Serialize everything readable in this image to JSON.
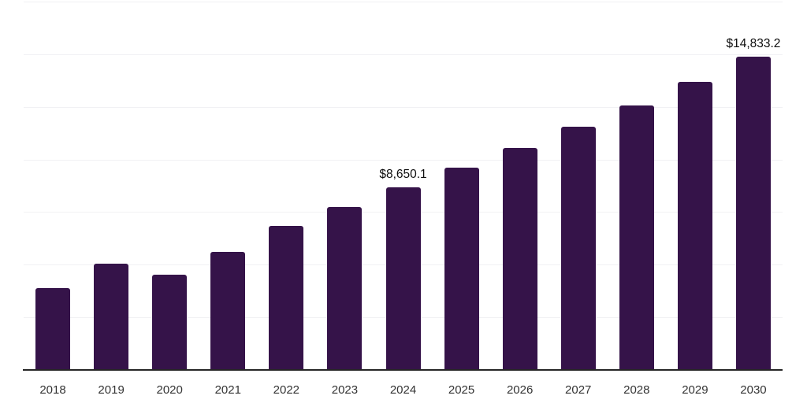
{
  "chart_data": {
    "type": "bar",
    "title": "",
    "xlabel": "",
    "ylabel": "",
    "categories": [
      "2018",
      "2019",
      "2020",
      "2021",
      "2022",
      "2023",
      "2024",
      "2025",
      "2026",
      "2027",
      "2028",
      "2029",
      "2030"
    ],
    "values": [
      3840,
      5000,
      4475,
      5590,
      6820,
      7720,
      8650.1,
      9580,
      10510,
      11520,
      12530,
      13650,
      14833.2
    ],
    "value_labels": {
      "2024": "$8,650.1",
      "2030": "$14,833.2"
    },
    "ylim": [
      0,
      17500
    ],
    "grid_step": 2500,
    "grid": true,
    "legend": false,
    "colors": {
      "bar": "#351349",
      "gridline": "#f1f1f4",
      "axis_line": "#262626",
      "tick_label": "#333333",
      "value_label": "#0d0d0d",
      "background": "#ffffff"
    }
  }
}
